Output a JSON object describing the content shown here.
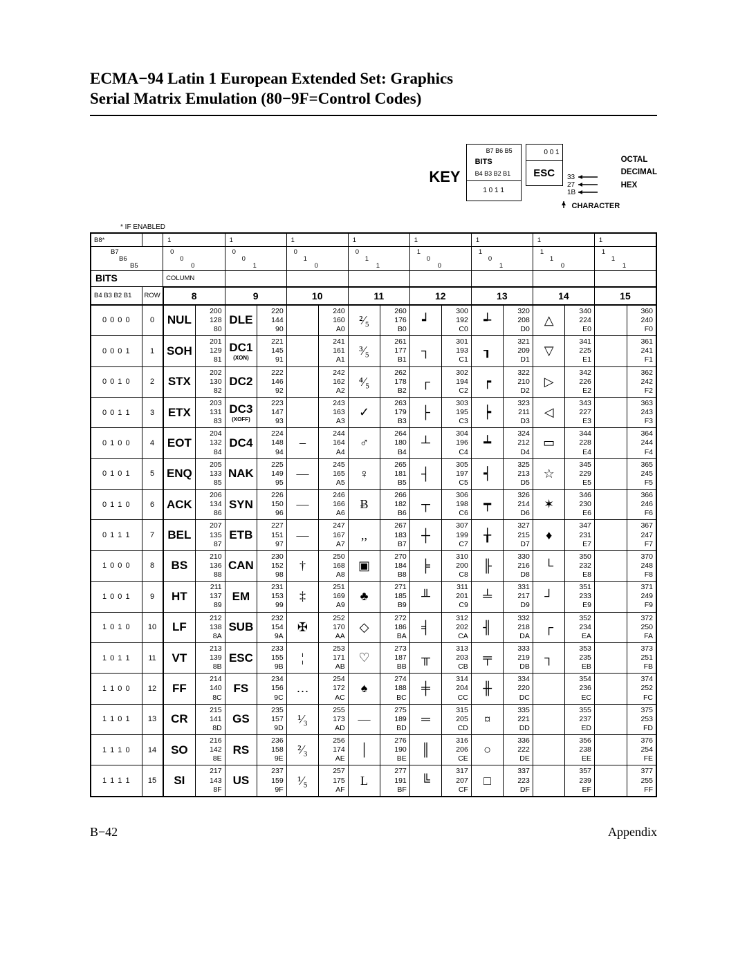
{
  "title_line1": "ECMA−94 Latin 1 European Extended Set: Graphics",
  "title_line2": "Serial Matrix Emulation (80−9F=Control Codes)",
  "key": {
    "label": "KEY",
    "bits_top": "B7  B6  B5",
    "bits_word": "BITS",
    "bits_bot": "B4 B3 B2 B1",
    "b7vals": "0    0    1",
    "b4vals": "1  0  1  1",
    "esc": "ESC",
    "octal": "33",
    "decimal": "27",
    "hex": "1B",
    "octal_l": "OCTAL",
    "decimal_l": "DECIMAL",
    "hex_l": "HEX",
    "char_l": "CHARACTER"
  },
  "enabled": "* IF ENABLED",
  "header": {
    "b8": "B8*",
    "b7": "B7",
    "b6": "B6",
    "b5": "B5",
    "bits": "BITS",
    "b4row": "B4 B3 B2 B1",
    "column": "COLUMN",
    "row": "ROW"
  },
  "topcols": [
    {
      "b8": "1",
      "b7": "0",
      "b6": "0",
      "b5": "0",
      "num": "8"
    },
    {
      "b8": "1",
      "b7": "0",
      "b6": "0",
      "b5": "1",
      "num": "9"
    },
    {
      "b8": "1",
      "b7": "0",
      "b6": "1",
      "b5": "0",
      "num": "10"
    },
    {
      "b8": "1",
      "b7": "0",
      "b6": "1",
      "b5": "1",
      "num": "11"
    },
    {
      "b8": "1",
      "b7": "1",
      "b6": "0",
      "b5": "0",
      "num": "12"
    },
    {
      "b8": "1",
      "b7": "1",
      "b6": "0",
      "b5": "1",
      "num": "13"
    },
    {
      "b8": "1",
      "b7": "1",
      "b6": "1",
      "b5": "0",
      "num": "14"
    },
    {
      "b8": "1",
      "b7": "1",
      "b6": "1",
      "b5": "1",
      "num": "15"
    }
  ],
  "rows": [
    {
      "bits": "0 0 0 0",
      "row": "0",
      "cells": [
        {
          "g": "NUL",
          "o": "200",
          "d": "128",
          "h": "80"
        },
        {
          "g": "DLE",
          "o": "220",
          "d": "144",
          "h": "90"
        },
        {
          "g": "",
          "o": "240",
          "d": "160",
          "h": "A0"
        },
        {
          "g": "²⁄₅",
          "sym": 1,
          "o": "260",
          "d": "176",
          "h": "B0"
        },
        {
          "g": "┙",
          "sym": 1,
          "o": "300",
          "d": "192",
          "h": "C0"
        },
        {
          "g": "┵",
          "sym": 1,
          "o": "320",
          "d": "208",
          "h": "D0"
        },
        {
          "g": "△",
          "sym": 1,
          "o": "340",
          "d": "224",
          "h": "E0"
        },
        {
          "g": "",
          "o": "360",
          "d": "240",
          "h": "F0"
        }
      ]
    },
    {
      "bits": "0 0 0 1",
      "row": "1",
      "cells": [
        {
          "g": "SOH",
          "o": "201",
          "d": "129",
          "h": "81"
        },
        {
          "g": "DC1",
          "sub": "(XON)",
          "o": "221",
          "d": "145",
          "h": "91"
        },
        {
          "g": "",
          "o": "241",
          "d": "161",
          "h": "A1"
        },
        {
          "g": "³⁄₅",
          "sym": 1,
          "o": "261",
          "d": "177",
          "h": "B1"
        },
        {
          "g": "┐",
          "sym": 1,
          "o": "301",
          "d": "193",
          "h": "C1"
        },
        {
          "g": "┒",
          "sym": 1,
          "o": "321",
          "d": "209",
          "h": "D1"
        },
        {
          "g": "▽",
          "sym": 1,
          "o": "341",
          "d": "225",
          "h": "E1"
        },
        {
          "g": "",
          "o": "361",
          "d": "241",
          "h": "F1"
        }
      ]
    },
    {
      "bits": "0 0 1 0",
      "row": "2",
      "cells": [
        {
          "g": "STX",
          "o": "202",
          "d": "130",
          "h": "82"
        },
        {
          "g": "DC2",
          "o": "222",
          "d": "146",
          "h": "92"
        },
        {
          "g": "",
          "o": "242",
          "d": "162",
          "h": "A2"
        },
        {
          "g": "⁴⁄₅",
          "sym": 1,
          "o": "262",
          "d": "178",
          "h": "B2"
        },
        {
          "g": "┌",
          "sym": 1,
          "o": "302",
          "d": "194",
          "h": "C2"
        },
        {
          "g": "┍",
          "sym": 1,
          "o": "322",
          "d": "210",
          "h": "D2"
        },
        {
          "g": "▷",
          "sym": 1,
          "o": "342",
          "d": "226",
          "h": "E2"
        },
        {
          "g": "",
          "o": "362",
          "d": "242",
          "h": "F2"
        }
      ]
    },
    {
      "bits": "0 0 1 1",
      "row": "3",
      "cells": [
        {
          "g": "ETX",
          "o": "203",
          "d": "131",
          "h": "83"
        },
        {
          "g": "DC3",
          "sub": "(XOFF)",
          "o": "223",
          "d": "147",
          "h": "93"
        },
        {
          "g": "",
          "o": "243",
          "d": "163",
          "h": "A3"
        },
        {
          "g": "✓",
          "sym": 1,
          "o": "263",
          "d": "179",
          "h": "B3"
        },
        {
          "g": "├",
          "sym": 1,
          "o": "303",
          "d": "195",
          "h": "C3"
        },
        {
          "g": "┝",
          "sym": 1,
          "o": "323",
          "d": "211",
          "h": "D3"
        },
        {
          "g": "◁",
          "sym": 1,
          "o": "343",
          "d": "227",
          "h": "E3"
        },
        {
          "g": "",
          "o": "363",
          "d": "243",
          "h": "F3"
        }
      ]
    },
    {
      "bits": "0 1 0 0",
      "row": "4",
      "cells": [
        {
          "g": "EOT",
          "o": "204",
          "d": "132",
          "h": "84"
        },
        {
          "g": "DC4",
          "o": "224",
          "d": "148",
          "h": "94"
        },
        {
          "g": "–",
          "sym": 1,
          "o": "244",
          "d": "164",
          "h": "A4"
        },
        {
          "g": "♂",
          "sym": 1,
          "o": "264",
          "d": "180",
          "h": "B4"
        },
        {
          "g": "┴",
          "sym": 1,
          "o": "304",
          "d": "196",
          "h": "C4"
        },
        {
          "g": "┷",
          "sym": 1,
          "o": "324",
          "d": "212",
          "h": "D4"
        },
        {
          "g": "▭",
          "sym": 1,
          "o": "344",
          "d": "228",
          "h": "E4"
        },
        {
          "g": "",
          "o": "364",
          "d": "244",
          "h": "F4"
        }
      ]
    },
    {
      "bits": "0 1 0 1",
      "row": "5",
      "cells": [
        {
          "g": "ENQ",
          "o": "205",
          "d": "133",
          "h": "85"
        },
        {
          "g": "NAK",
          "o": "225",
          "d": "149",
          "h": "95"
        },
        {
          "g": "—",
          "sym": 1,
          "o": "245",
          "d": "165",
          "h": "A5"
        },
        {
          "g": "♀",
          "sym": 1,
          "o": "265",
          "d": "181",
          "h": "B5"
        },
        {
          "g": "┤",
          "sym": 1,
          "o": "305",
          "d": "197",
          "h": "C5"
        },
        {
          "g": "┥",
          "sym": 1,
          "o": "325",
          "d": "213",
          "h": "D5"
        },
        {
          "g": "☆",
          "sym": 1,
          "o": "345",
          "d": "229",
          "h": "E5"
        },
        {
          "g": "",
          "o": "365",
          "d": "245",
          "h": "F5"
        }
      ]
    },
    {
      "bits": "0 1 1 0",
      "row": "6",
      "cells": [
        {
          "g": "ACK",
          "o": "206",
          "d": "134",
          "h": "86"
        },
        {
          "g": "SYN",
          "o": "226",
          "d": "150",
          "h": "96"
        },
        {
          "g": "—",
          "sym": 1,
          "o": "246",
          "d": "166",
          "h": "A6"
        },
        {
          "g": "Ƀ",
          "sym": 1,
          "o": "266",
          "d": "182",
          "h": "B6"
        },
        {
          "g": "┬",
          "sym": 1,
          "o": "306",
          "d": "198",
          "h": "C6"
        },
        {
          "g": "┯",
          "sym": 1,
          "o": "326",
          "d": "214",
          "h": "D6"
        },
        {
          "g": "✶",
          "sym": 1,
          "o": "346",
          "d": "230",
          "h": "E6"
        },
        {
          "g": "",
          "o": "366",
          "d": "246",
          "h": "F6"
        }
      ]
    },
    {
      "bits": "0 1 1 1",
      "row": "7",
      "cells": [
        {
          "g": "BEL",
          "o": "207",
          "d": "135",
          "h": "87"
        },
        {
          "g": "ETB",
          "o": "227",
          "d": "151",
          "h": "97"
        },
        {
          "g": "—",
          "sym": 1,
          "o": "247",
          "d": "167",
          "h": "A7"
        },
        {
          "g": ",,",
          "sym": 1,
          "o": "267",
          "d": "183",
          "h": "B7"
        },
        {
          "g": "┼",
          "sym": 1,
          "o": "307",
          "d": "199",
          "h": "C7"
        },
        {
          "g": "╁",
          "sym": 1,
          "o": "327",
          "d": "215",
          "h": "D7"
        },
        {
          "g": "♦",
          "sym": 1,
          "o": "347",
          "d": "231",
          "h": "E7"
        },
        {
          "g": "",
          "o": "367",
          "d": "247",
          "h": "F7"
        }
      ]
    },
    {
      "bits": "1 0 0 0",
      "row": "8",
      "cells": [
        {
          "g": "BS",
          "o": "210",
          "d": "136",
          "h": "88"
        },
        {
          "g": "CAN",
          "o": "230",
          "d": "152",
          "h": "98"
        },
        {
          "g": "†",
          "sym": 1,
          "o": "250",
          "d": "168",
          "h": "A8"
        },
        {
          "g": "▣",
          "sym": 1,
          "o": "270",
          "d": "184",
          "h": "B8"
        },
        {
          "g": "╞",
          "sym": 1,
          "o": "310",
          "d": "200",
          "h": "C8"
        },
        {
          "g": "╟",
          "sym": 1,
          "o": "330",
          "d": "216",
          "h": "D8"
        },
        {
          "g": "└",
          "sym": 1,
          "o": "350",
          "d": "232",
          "h": "E8"
        },
        {
          "g": "",
          "o": "370",
          "d": "248",
          "h": "F8"
        }
      ]
    },
    {
      "bits": "1 0 0 1",
      "row": "9",
      "cells": [
        {
          "g": "HT",
          "o": "211",
          "d": "137",
          "h": "89"
        },
        {
          "g": "EM",
          "o": "231",
          "d": "153",
          "h": "99"
        },
        {
          "g": "‡",
          "sym": 1,
          "o": "251",
          "d": "169",
          "h": "A9"
        },
        {
          "g": "♣",
          "sym": 1,
          "o": "271",
          "d": "185",
          "h": "B9"
        },
        {
          "g": "╨",
          "sym": 1,
          "o": "311",
          "d": "201",
          "h": "C9"
        },
        {
          "g": "╧",
          "sym": 1,
          "o": "331",
          "d": "217",
          "h": "D9"
        },
        {
          "g": "┘",
          "sym": 1,
          "o": "351",
          "d": "233",
          "h": "E9"
        },
        {
          "g": "",
          "o": "371",
          "d": "249",
          "h": "F9"
        }
      ]
    },
    {
      "bits": "1 0 1 0",
      "row": "10",
      "cells": [
        {
          "g": "LF",
          "o": "212",
          "d": "138",
          "h": "8A"
        },
        {
          "g": "SUB",
          "o": "232",
          "d": "154",
          "h": "9A"
        },
        {
          "g": "✠",
          "sym": 1,
          "o": "252",
          "d": "170",
          "h": "AA"
        },
        {
          "g": "◇",
          "sym": 1,
          "o": "272",
          "d": "186",
          "h": "BA"
        },
        {
          "g": "╡",
          "sym": 1,
          "o": "312",
          "d": "202",
          "h": "CA"
        },
        {
          "g": "╢",
          "sym": 1,
          "o": "332",
          "d": "218",
          "h": "DA"
        },
        {
          "g": "┌",
          "sym": 1,
          "o": "352",
          "d": "234",
          "h": "EA"
        },
        {
          "g": "",
          "o": "372",
          "d": "250",
          "h": "FA"
        }
      ]
    },
    {
      "bits": "1 0 1 1",
      "row": "11",
      "cells": [
        {
          "g": "VT",
          "o": "213",
          "d": "139",
          "h": "8B"
        },
        {
          "g": "ESC",
          "o": "233",
          "d": "155",
          "h": "9B"
        },
        {
          "g": "¦",
          "sym": 1,
          "o": "253",
          "d": "171",
          "h": "AB"
        },
        {
          "g": "♡",
          "sym": 1,
          "o": "273",
          "d": "187",
          "h": "BB"
        },
        {
          "g": "╥",
          "sym": 1,
          "o": "313",
          "d": "203",
          "h": "CB"
        },
        {
          "g": "╤",
          "sym": 1,
          "o": "333",
          "d": "219",
          "h": "DB"
        },
        {
          "g": "┐",
          "sym": 1,
          "o": "353",
          "d": "235",
          "h": "EB"
        },
        {
          "g": "",
          "o": "373",
          "d": "251",
          "h": "FB"
        }
      ]
    },
    {
      "bits": "1 1 0 0",
      "row": "12",
      "cells": [
        {
          "g": "FF",
          "o": "214",
          "d": "140",
          "h": "8C"
        },
        {
          "g": "FS",
          "o": "234",
          "d": "156",
          "h": "9C"
        },
        {
          "g": "…",
          "sym": 1,
          "o": "254",
          "d": "172",
          "h": "AC"
        },
        {
          "g": "♠",
          "sym": 1,
          "o": "274",
          "d": "188",
          "h": "BC"
        },
        {
          "g": "╪",
          "sym": 1,
          "o": "314",
          "d": "204",
          "h": "CC"
        },
        {
          "g": "╫",
          "sym": 1,
          "o": "334",
          "d": "220",
          "h": "DC"
        },
        {
          "g": "",
          "o": "354",
          "d": "236",
          "h": "EC"
        },
        {
          "g": "",
          "o": "374",
          "d": "252",
          "h": "FC"
        }
      ]
    },
    {
      "bits": "1 1 0 1",
      "row": "13",
      "cells": [
        {
          "g": "CR",
          "o": "215",
          "d": "141",
          "h": "8D"
        },
        {
          "g": "GS",
          "o": "235",
          "d": "157",
          "h": "9D"
        },
        {
          "g": "¹⁄₃",
          "sym": 1,
          "o": "255",
          "d": "173",
          "h": "AD"
        },
        {
          "g": "—",
          "sym": 1,
          "o": "275",
          "d": "189",
          "h": "BD"
        },
        {
          "g": "═",
          "sym": 1,
          "o": "315",
          "d": "205",
          "h": "CD"
        },
        {
          "g": "¤",
          "sym": 1,
          "o": "335",
          "d": "221",
          "h": "DD"
        },
        {
          "g": "",
          "o": "355",
          "d": "237",
          "h": "ED"
        },
        {
          "g": "",
          "o": "375",
          "d": "253",
          "h": "FD"
        }
      ]
    },
    {
      "bits": "1 1 1 0",
      "row": "14",
      "cells": [
        {
          "g": "SO",
          "o": "216",
          "d": "142",
          "h": "8E"
        },
        {
          "g": "RS",
          "o": "236",
          "d": "158",
          "h": "9E"
        },
        {
          "g": "²⁄₃",
          "sym": 1,
          "o": "256",
          "d": "174",
          "h": "AE"
        },
        {
          "g": "│",
          "sym": 1,
          "o": "276",
          "d": "190",
          "h": "BE"
        },
        {
          "g": "║",
          "sym": 1,
          "o": "316",
          "d": "206",
          "h": "CE"
        },
        {
          "g": "○",
          "sym": 1,
          "o": "336",
          "d": "222",
          "h": "DE"
        },
        {
          "g": "",
          "o": "356",
          "d": "238",
          "h": "EE"
        },
        {
          "g": "",
          "o": "376",
          "d": "254",
          "h": "FE"
        }
      ]
    },
    {
      "bits": "1 1 1 1",
      "row": "15",
      "cells": [
        {
          "g": "SI",
          "o": "217",
          "d": "143",
          "h": "8F"
        },
        {
          "g": "US",
          "o": "237",
          "d": "159",
          "h": "9F"
        },
        {
          "g": "¹⁄₅",
          "sym": 1,
          "o": "257",
          "d": "175",
          "h": "AF"
        },
        {
          "g": "L",
          "sym": 1,
          "o": "277",
          "d": "191",
          "h": "BF"
        },
        {
          "g": "╚",
          "sym": 1,
          "o": "317",
          "d": "207",
          "h": "CF"
        },
        {
          "g": "□",
          "sym": 1,
          "o": "337",
          "d": "223",
          "h": "DF"
        },
        {
          "g": "",
          "o": "357",
          "d": "239",
          "h": "EF"
        },
        {
          "g": "",
          "o": "377",
          "d": "255",
          "h": "FF"
        }
      ]
    }
  ],
  "footer": {
    "left": "B−42",
    "right": "Appendix"
  }
}
